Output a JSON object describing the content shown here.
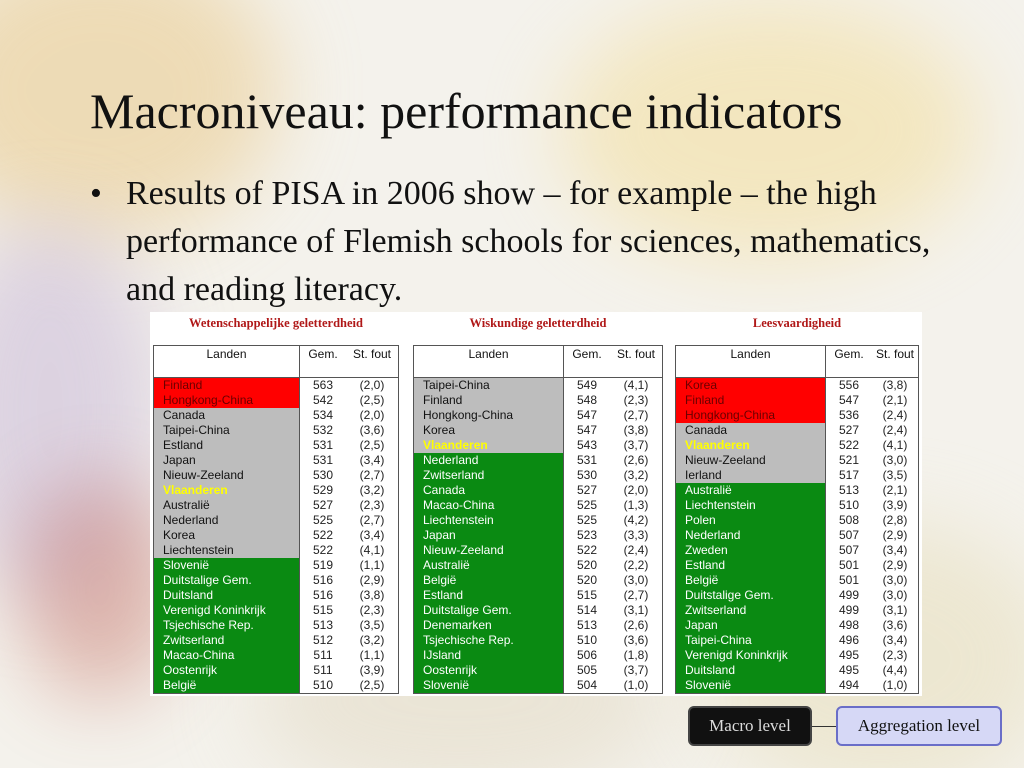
{
  "slide": {
    "title": "Macroniveau: performance indicators",
    "bullet_symbol": "•",
    "bullet": "Results of PISA in 2006 show – for example – the high performance of Flemish schools for sciences, mathematics, and reading literacy."
  },
  "tables": [
    {
      "title": "Wetenschappelijke geletterdheid",
      "headers": {
        "country": "Landen",
        "mean": "Gem.",
        "se": "St. fout"
      },
      "rows": [
        {
          "country": "Finland",
          "mean": "563",
          "se": "(2,0)",
          "color": "red"
        },
        {
          "country": "Hongkong-China",
          "mean": "542",
          "se": "(2,5)",
          "color": "red"
        },
        {
          "country": "Canada",
          "mean": "534",
          "se": "(2,0)",
          "color": "gray"
        },
        {
          "country": "Taipei-China",
          "mean": "532",
          "se": "(3,6)",
          "color": "gray"
        },
        {
          "country": "Estland",
          "mean": "531",
          "se": "(2,5)",
          "color": "gray"
        },
        {
          "country": "Japan",
          "mean": "531",
          "se": "(3,4)",
          "color": "gray"
        },
        {
          "country": "Nieuw-Zeeland",
          "mean": "530",
          "se": "(2,7)",
          "color": "gray"
        },
        {
          "country": "Vlaanderen",
          "mean": "529",
          "se": "(3,2)",
          "color": "gray",
          "highlight": true
        },
        {
          "country": "Australië",
          "mean": "527",
          "se": "(2,3)",
          "color": "gray"
        },
        {
          "country": "Nederland",
          "mean": "525",
          "se": "(2,7)",
          "color": "gray"
        },
        {
          "country": "Korea",
          "mean": "522",
          "se": "(3,4)",
          "color": "gray"
        },
        {
          "country": "Liechtenstein",
          "mean": "522",
          "se": "(4,1)",
          "color": "gray"
        },
        {
          "country": "Slovenië",
          "mean": "519",
          "se": "(1,1)",
          "color": "green"
        },
        {
          "country": "Duitstalige Gem.",
          "mean": "516",
          "se": "(2,9)",
          "color": "green"
        },
        {
          "country": "Duitsland",
          "mean": "516",
          "se": "(3,8)",
          "color": "green"
        },
        {
          "country": "Verenigd Koninkrijk",
          "mean": "515",
          "se": "(2,3)",
          "color": "green"
        },
        {
          "country": "Tsjechische Rep.",
          "mean": "513",
          "se": "(3,5)",
          "color": "green"
        },
        {
          "country": "Zwitserland",
          "mean": "512",
          "se": "(3,2)",
          "color": "green"
        },
        {
          "country": "Macao-China",
          "mean": "511",
          "se": "(1,1)",
          "color": "green"
        },
        {
          "country": "Oostenrijk",
          "mean": "511",
          "se": "(3,9)",
          "color": "green"
        },
        {
          "country": "België",
          "mean": "510",
          "se": "(2,5)",
          "color": "green"
        }
      ]
    },
    {
      "title": "Wiskundige geletterdheid",
      "headers": {
        "country": "Landen",
        "mean": "Gem.",
        "se": "St. fout"
      },
      "rows": [
        {
          "country": "Taipei-China",
          "mean": "549",
          "se": "(4,1)",
          "color": "gray"
        },
        {
          "country": "Finland",
          "mean": "548",
          "se": "(2,3)",
          "color": "gray"
        },
        {
          "country": "Hongkong-China",
          "mean": "547",
          "se": "(2,7)",
          "color": "gray"
        },
        {
          "country": "Korea",
          "mean": "547",
          "se": "(3,8)",
          "color": "gray"
        },
        {
          "country": "Vlaanderen",
          "mean": "543",
          "se": "(3,7)",
          "color": "gray",
          "highlight": true
        },
        {
          "country": "Nederland",
          "mean": "531",
          "se": "(2,6)",
          "color": "green"
        },
        {
          "country": "Zwitserland",
          "mean": "530",
          "se": "(3,2)",
          "color": "green"
        },
        {
          "country": "Canada",
          "mean": "527",
          "se": "(2,0)",
          "color": "green"
        },
        {
          "country": "Macao-China",
          "mean": "525",
          "se": "(1,3)",
          "color": "green"
        },
        {
          "country": "Liechtenstein",
          "mean": "525",
          "se": "(4,2)",
          "color": "green"
        },
        {
          "country": "Japan",
          "mean": "523",
          "se": "(3,3)",
          "color": "green"
        },
        {
          "country": "Nieuw-Zeeland",
          "mean": "522",
          "se": "(2,4)",
          "color": "green"
        },
        {
          "country": "Australië",
          "mean": "520",
          "se": "(2,2)",
          "color": "green"
        },
        {
          "country": "België",
          "mean": "520",
          "se": "(3,0)",
          "color": "green"
        },
        {
          "country": "Estland",
          "mean": "515",
          "se": "(2,7)",
          "color": "green"
        },
        {
          "country": "Duitstalige Gem.",
          "mean": "514",
          "se": "(3,1)",
          "color": "green"
        },
        {
          "country": "Denemarken",
          "mean": "513",
          "se": "(2,6)",
          "color": "green"
        },
        {
          "country": "Tsjechische Rep.",
          "mean": "510",
          "se": "(3,6)",
          "color": "green"
        },
        {
          "country": "IJsland",
          "mean": "506",
          "se": "(1,8)",
          "color": "green"
        },
        {
          "country": "Oostenrijk",
          "mean": "505",
          "se": "(3,7)",
          "color": "green"
        },
        {
          "country": "Slovenië",
          "mean": "504",
          "se": "(1,0)",
          "color": "green"
        }
      ]
    },
    {
      "title": "Leesvaardigheid",
      "headers": {
        "country": "Landen",
        "mean": "Gem.",
        "se": "St. fout"
      },
      "rows": [
        {
          "country": "Korea",
          "mean": "556",
          "se": "(3,8)",
          "color": "red"
        },
        {
          "country": "Finland",
          "mean": "547",
          "se": "(2,1)",
          "color": "red"
        },
        {
          "country": "Hongkong-China",
          "mean": "536",
          "se": "(2,4)",
          "color": "red"
        },
        {
          "country": "Canada",
          "mean": "527",
          "se": "(2,4)",
          "color": "gray"
        },
        {
          "country": "Vlaanderen",
          "mean": "522",
          "se": "(4,1)",
          "color": "gray",
          "highlight": true
        },
        {
          "country": "Nieuw-Zeeland",
          "mean": "521",
          "se": "(3,0)",
          "color": "gray"
        },
        {
          "country": "Ierland",
          "mean": "517",
          "se": "(3,5)",
          "color": "gray"
        },
        {
          "country": "Australië",
          "mean": "513",
          "se": "(2,1)",
          "color": "green"
        },
        {
          "country": "Liechtenstein",
          "mean": "510",
          "se": "(3,9)",
          "color": "green"
        },
        {
          "country": "Polen",
          "mean": "508",
          "se": "(2,8)",
          "color": "green"
        },
        {
          "country": "Nederland",
          "mean": "507",
          "se": "(2,9)",
          "color": "green"
        },
        {
          "country": "Zweden",
          "mean": "507",
          "se": "(3,4)",
          "color": "green"
        },
        {
          "country": "Estland",
          "mean": "501",
          "se": "(2,9)",
          "color": "green"
        },
        {
          "country": "België",
          "mean": "501",
          "se": "(3,0)",
          "color": "green"
        },
        {
          "country": "Duitstalige Gem.",
          "mean": "499",
          "se": "(3,0)",
          "color": "green"
        },
        {
          "country": "Zwitserland",
          "mean": "499",
          "se": "(3,1)",
          "color": "green"
        },
        {
          "country": "Japan",
          "mean": "498",
          "se": "(3,6)",
          "color": "green"
        },
        {
          "country": "Taipei-China",
          "mean": "496",
          "se": "(3,4)",
          "color": "green"
        },
        {
          "country": "Verenigd Koninkrijk",
          "mean": "495",
          "se": "(2,3)",
          "color": "green"
        },
        {
          "country": "Duitsland",
          "mean": "495",
          "se": "(4,4)",
          "color": "green"
        },
        {
          "country": "Slovenië",
          "mean": "494",
          "se": "(1,0)",
          "color": "green"
        }
      ]
    }
  ],
  "footer": {
    "macro_label": "Macro level",
    "aggregation_label": "Aggregation level"
  }
}
